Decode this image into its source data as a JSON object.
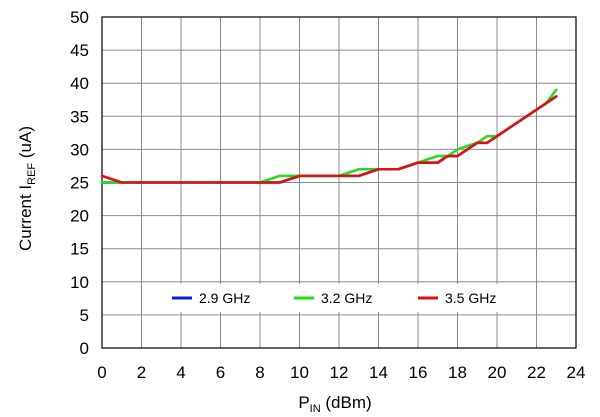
{
  "chart_data": {
    "type": "line",
    "xlim": [
      0,
      24
    ],
    "ylim": [
      0,
      50
    ],
    "x_ticks": [
      0,
      2,
      4,
      6,
      8,
      10,
      12,
      14,
      16,
      18,
      20,
      22,
      24
    ],
    "y_ticks": [
      0,
      5,
      10,
      15,
      20,
      25,
      30,
      35,
      40,
      45,
      50
    ],
    "x_tick_labels": [
      "0",
      "2",
      "4",
      "6",
      "8",
      "10",
      "12",
      "14",
      "16",
      "18",
      "20",
      "22",
      "24"
    ],
    "y_tick_labels": [
      "0",
      "5",
      "10",
      "15",
      "20",
      "25",
      "30",
      "35",
      "40",
      "45",
      "50"
    ],
    "grid": true,
    "legend_placement": "bottom-center",
    "xlabel": {
      "main": "P",
      "sub": "IN",
      "rest": " (dBm)"
    },
    "ylabel": {
      "pre": "Current I",
      "sub": "REF",
      "rest": "  (uA)"
    },
    "series": [
      {
        "name": "2.9 GHz",
        "color": "#0a1fd6",
        "points": [
          [
            0,
            25
          ],
          [
            1,
            25
          ],
          [
            2,
            25
          ],
          [
            3,
            25
          ],
          [
            4,
            25
          ],
          [
            5,
            25
          ],
          [
            6,
            25
          ],
          [
            7,
            25
          ],
          [
            8,
            25
          ],
          [
            9,
            25
          ],
          [
            10,
            26
          ],
          [
            11,
            26
          ],
          [
            12,
            26
          ],
          [
            13,
            26
          ],
          [
            14,
            27
          ],
          [
            15,
            27
          ],
          [
            16,
            28
          ],
          [
            17,
            28
          ],
          [
            17.5,
            29
          ],
          [
            18,
            29
          ],
          [
            19,
            31
          ],
          [
            19.5,
            31
          ],
          [
            20.5,
            33
          ],
          [
            21.5,
            35
          ],
          [
            22.5,
            37
          ],
          [
            23,
            38
          ]
        ]
      },
      {
        "name": "3.2 GHz",
        "color": "#22dd22",
        "points": [
          [
            0,
            25
          ],
          [
            1,
            25
          ],
          [
            2,
            25
          ],
          [
            3,
            25
          ],
          [
            4,
            25
          ],
          [
            5,
            25
          ],
          [
            6,
            25
          ],
          [
            7,
            25
          ],
          [
            8,
            25
          ],
          [
            9,
            26
          ],
          [
            10,
            26
          ],
          [
            11,
            26
          ],
          [
            12,
            26
          ],
          [
            13,
            27
          ],
          [
            14,
            27
          ],
          [
            15,
            27
          ],
          [
            16,
            28
          ],
          [
            17,
            29
          ],
          [
            17.5,
            29
          ],
          [
            18,
            30
          ],
          [
            19,
            31
          ],
          [
            19.5,
            32
          ],
          [
            20,
            32
          ],
          [
            20.5,
            33
          ],
          [
            21.5,
            35
          ],
          [
            22.5,
            37
          ],
          [
            23,
            39
          ]
        ]
      },
      {
        "name": "3.5 GHz",
        "color": "#dd1111",
        "points": [
          [
            0,
            26
          ],
          [
            1,
            25
          ],
          [
            2,
            25
          ],
          [
            3,
            25
          ],
          [
            4,
            25
          ],
          [
            5,
            25
          ],
          [
            6,
            25
          ],
          [
            7,
            25
          ],
          [
            8,
            25
          ],
          [
            9,
            25
          ],
          [
            10,
            26
          ],
          [
            11,
            26
          ],
          [
            12,
            26
          ],
          [
            13,
            26
          ],
          [
            14,
            27
          ],
          [
            15,
            27
          ],
          [
            16,
            28
          ],
          [
            17,
            28
          ],
          [
            17.5,
            29
          ],
          [
            18,
            29
          ],
          [
            19,
            31
          ],
          [
            19.5,
            31
          ],
          [
            20.5,
            33
          ],
          [
            21.5,
            35
          ],
          [
            22.5,
            37
          ],
          [
            23,
            38
          ]
        ]
      }
    ]
  }
}
